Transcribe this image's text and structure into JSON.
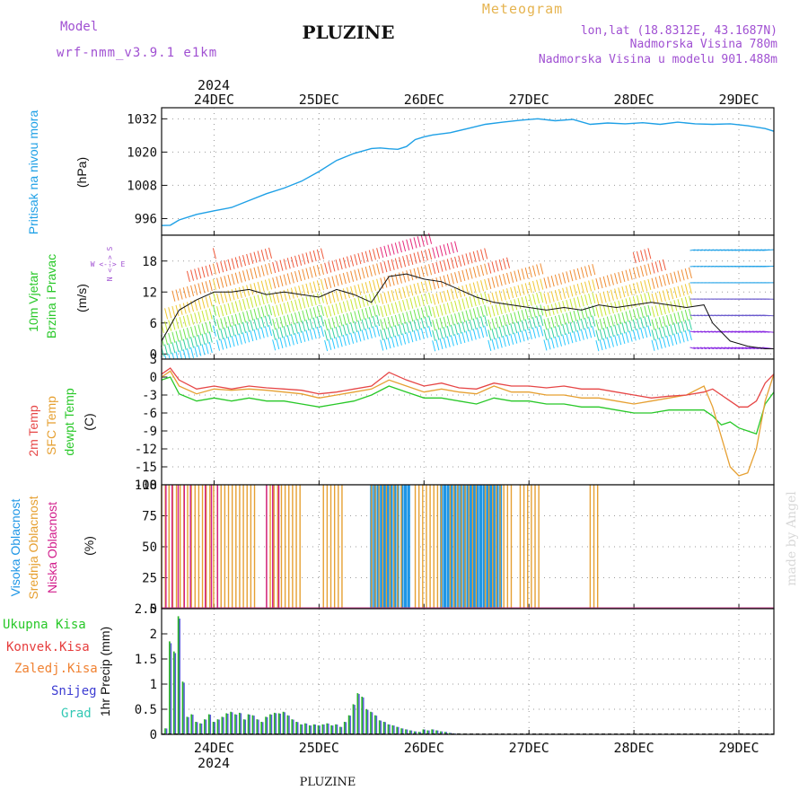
{
  "header": {
    "model_label": "Model",
    "model_name": "wrf-nmm_v3.9.1 e1km",
    "station": "PLUZINE",
    "meteogram_title": "Meteogram",
    "coords": "lon,lat (18.8312E, 43.1687N)",
    "altitude": "Nadmorska Visina 780m",
    "model_altitude": "Nadmorska Visina u modelu 901.488m",
    "footer_station": "PLUZINE",
    "watermark": "made by Angel"
  },
  "colors": {
    "pressure": "#1ea0e6",
    "temp2m": "#e64646",
    "sfc": "#e6a032",
    "dew": "#28c828",
    "high_cloud": "#1e96e6",
    "mid_cloud": "#e6a032",
    "low_cloud": "#d21e8c",
    "precip_total": "#28b428",
    "precip_conv": "#e63c3c",
    "precip_frozen": "#f08232",
    "precip_snow": "#3c3cd2",
    "precip_graupel": "#32c8b4",
    "purple": "#a050d2"
  },
  "chart_data": {
    "x_axis": {
      "year": "2024",
      "days": [
        "24DEC",
        "25DEC",
        "26DEC",
        "27DEC",
        "28DEC",
        "29DEC"
      ],
      "range_hours": [
        -12,
        128
      ]
    },
    "pressure": {
      "ylabel": "Pritisak na nivou mora",
      "unit": "(hPa)",
      "ylim": [
        990,
        1036
      ],
      "ticks": [
        996,
        1008,
        1020,
        1032
      ],
      "h": [
        -12,
        -10,
        -8,
        -4,
        0,
        4,
        8,
        12,
        16,
        20,
        24,
        28,
        32,
        36,
        38,
        40,
        42,
        44,
        46,
        48,
        50,
        54,
        58,
        62,
        66,
        70,
        74,
        78,
        82,
        86,
        90,
        94,
        98,
        102,
        106,
        110,
        114,
        118,
        122,
        126,
        128
      ],
      "values": [
        993.5,
        993.6,
        995.5,
        997.5,
        998.8,
        1000.0,
        1002.5,
        1005.0,
        1007.0,
        1009.5,
        1013.0,
        1017.0,
        1019.5,
        1021.3,
        1021.5,
        1021.2,
        1021.0,
        1022.0,
        1024.5,
        1025.5,
        1026.2,
        1027.0,
        1028.5,
        1030.0,
        1030.8,
        1031.5,
        1032.0,
        1031.3,
        1031.8,
        1030.0,
        1030.5,
        1030.2,
        1030.6,
        1030.0,
        1030.8,
        1030.2,
        1030.0,
        1030.2,
        1029.5,
        1028.5,
        1027.5
      ]
    },
    "wind": {
      "ylabel_1": "10m Vjetar",
      "ylabel_2": "Brzina i Pravac",
      "unit": "(m/s)",
      "compass_ns": "N <--> S",
      "compass_we": "W <--> E",
      "ylim": [
        -1,
        23
      ],
      "ticks": [
        0,
        6,
        12,
        18
      ],
      "h": [
        -12,
        -8,
        -4,
        0,
        4,
        8,
        12,
        16,
        20,
        24,
        28,
        32,
        36,
        40,
        44,
        48,
        52,
        56,
        60,
        64,
        68,
        72,
        76,
        80,
        84,
        88,
        92,
        96,
        100,
        104,
        108,
        112,
        114,
        118,
        122,
        126,
        128
      ],
      "values": [
        2.5,
        8.5,
        10.5,
        12.0,
        12.0,
        12.5,
        11.5,
        12.0,
        11.5,
        11.0,
        12.5,
        11.5,
        10.0,
        15.0,
        15.5,
        14.5,
        14.0,
        12.5,
        11.0,
        10.0,
        9.5,
        9.0,
        8.5,
        9.0,
        8.5,
        9.5,
        9.0,
        9.5,
        10.0,
        9.5,
        9.0,
        9.5,
        6.0,
        2.5,
        1.5,
        1.0,
        1.0
      ]
    },
    "temperature": {
      "label_2m": "2m Temp",
      "label_sfc": "SFC Temp",
      "label_dew": "dewpt Temp",
      "unit": "(C)",
      "ylim": [
        -18,
        3
      ],
      "ticks": [
        -18,
        -15,
        -12,
        -9,
        -6,
        -3,
        0,
        3
      ],
      "h": [
        -12,
        -10,
        -8,
        -4,
        0,
        4,
        8,
        12,
        16,
        20,
        24,
        28,
        32,
        36,
        40,
        44,
        48,
        52,
        56,
        60,
        64,
        68,
        72,
        76,
        80,
        84,
        88,
        92,
        96,
        100,
        104,
        108,
        112,
        114,
        116,
        118,
        120,
        122,
        124,
        126,
        128
      ],
      "t2m": [
        0.5,
        1.5,
        -0.5,
        -2.0,
        -1.5,
        -2.0,
        -1.5,
        -1.8,
        -2.0,
        -2.2,
        -2.8,
        -2.5,
        -2.0,
        -1.5,
        0.8,
        -0.5,
        -1.5,
        -1.0,
        -1.8,
        -2.0,
        -1.0,
        -1.5,
        -1.5,
        -1.8,
        -1.5,
        -2.0,
        -2.0,
        -2.5,
        -3.0,
        -3.5,
        -3.2,
        -3.0,
        -2.5,
        -2.0,
        -3.0,
        -4.0,
        -5.0,
        -5.0,
        -4.0,
        -1.0,
        0.5
      ],
      "tsfc": [
        0.0,
        1.0,
        -1.5,
        -2.8,
        -2.0,
        -2.2,
        -2.0,
        -2.2,
        -2.5,
        -2.8,
        -3.5,
        -3.0,
        -2.5,
        -2.0,
        -0.5,
        -1.5,
        -2.5,
        -2.0,
        -2.5,
        -2.8,
        -1.5,
        -2.5,
        -2.5,
        -3.0,
        -3.0,
        -3.5,
        -3.5,
        -4.0,
        -4.5,
        -4.0,
        -3.5,
        -3.0,
        -1.5,
        -5.0,
        -10.0,
        -15.0,
        -16.5,
        -16.0,
        -12.0,
        -4.0,
        0.5
      ],
      "tdew": [
        -0.5,
        0.0,
        -2.8,
        -4.0,
        -3.5,
        -4.0,
        -3.5,
        -4.0,
        -4.0,
        -4.5,
        -5.0,
        -4.5,
        -4.0,
        -3.0,
        -1.5,
        -2.5,
        -3.5,
        -3.5,
        -4.0,
        -4.5,
        -3.5,
        -4.0,
        -4.0,
        -4.5,
        -4.5,
        -5.0,
        -5.0,
        -5.5,
        -6.0,
        -6.0,
        -5.5,
        -5.5,
        -5.5,
        -6.5,
        -8.0,
        -7.5,
        -8.5,
        -9.0,
        -9.5,
        -4.5,
        -2.5
      ]
    },
    "clouds": {
      "label_high": "Visoka Oblacnost",
      "label_mid": "Srednja Oblacnost",
      "label_low": "Niska Oblacnost",
      "unit": "(%)",
      "ylim": [
        0,
        100
      ],
      "ticks": [
        0,
        25,
        50,
        75,
        100
      ],
      "mid_windows": [
        [
          -12,
          10
        ],
        [
          12,
          20
        ],
        [
          25,
          30
        ],
        [
          36,
          43
        ],
        [
          46,
          52
        ],
        [
          54,
          60
        ],
        [
          62,
          68
        ],
        [
          70,
          75
        ],
        [
          86,
          88
        ]
      ],
      "low_windows": [
        [
          -11,
          -4
        ],
        [
          -2,
          2
        ],
        [
          12,
          16
        ]
      ],
      "high_windows": [
        [
          36,
          42
        ],
        [
          43,
          45
        ],
        [
          52,
          66
        ]
      ]
    },
    "precip": {
      "label_total": "Ukupna Kisa",
      "label_conv": "Konvek.Kisa",
      "label_frozen": "Zaledj.Kisa",
      "label_snow": "Snijeg",
      "label_graupel": "Grad",
      "ylabel": "1hr Precip (mm)",
      "ylim": [
        0,
        2.5
      ],
      "ticks": [
        0,
        0.5,
        1,
        1.5,
        2,
        2.5
      ],
      "h": [
        -11,
        -10,
        -9,
        -8,
        -7,
        -6,
        -5,
        -4,
        -3,
        -2,
        -1,
        0,
        1,
        2,
        3,
        4,
        5,
        6,
        7,
        8,
        9,
        10,
        11,
        12,
        13,
        14,
        15,
        16,
        17,
        18,
        19,
        20,
        21,
        22,
        23,
        24,
        25,
        26,
        27,
        28,
        29,
        30,
        31,
        32,
        33,
        34,
        35,
        36,
        37,
        38,
        39,
        40,
        41,
        42,
        43,
        44,
        45,
        46,
        47,
        48,
        49,
        50,
        51,
        52,
        53,
        54,
        55,
        56,
        57,
        58,
        59,
        60,
        61,
        62,
        63,
        64,
        65,
        66,
        67,
        68
      ],
      "values": [
        0.12,
        1.85,
        1.65,
        2.35,
        1.05,
        0.35,
        0.4,
        0.25,
        0.22,
        0.3,
        0.4,
        0.25,
        0.3,
        0.35,
        0.42,
        0.45,
        0.4,
        0.43,
        0.3,
        0.4,
        0.38,
        0.3,
        0.25,
        0.35,
        0.4,
        0.43,
        0.42,
        0.45,
        0.38,
        0.3,
        0.25,
        0.2,
        0.22,
        0.18,
        0.2,
        0.18,
        0.2,
        0.22,
        0.18,
        0.2,
        0.15,
        0.25,
        0.38,
        0.6,
        0.82,
        0.75,
        0.5,
        0.45,
        0.38,
        0.28,
        0.25,
        0.2,
        0.18,
        0.15,
        0.12,
        0.1,
        0.08,
        0.06,
        0.05,
        0.1,
        0.08,
        0.1,
        0.08,
        0.06,
        0.05,
        0.03,
        0.02,
        0.02,
        0.01,
        0.01,
        0.01,
        0.0,
        0.0,
        0.0,
        0.0,
        0.0,
        0.0,
        0.0,
        0.0,
        0.0
      ]
    }
  }
}
